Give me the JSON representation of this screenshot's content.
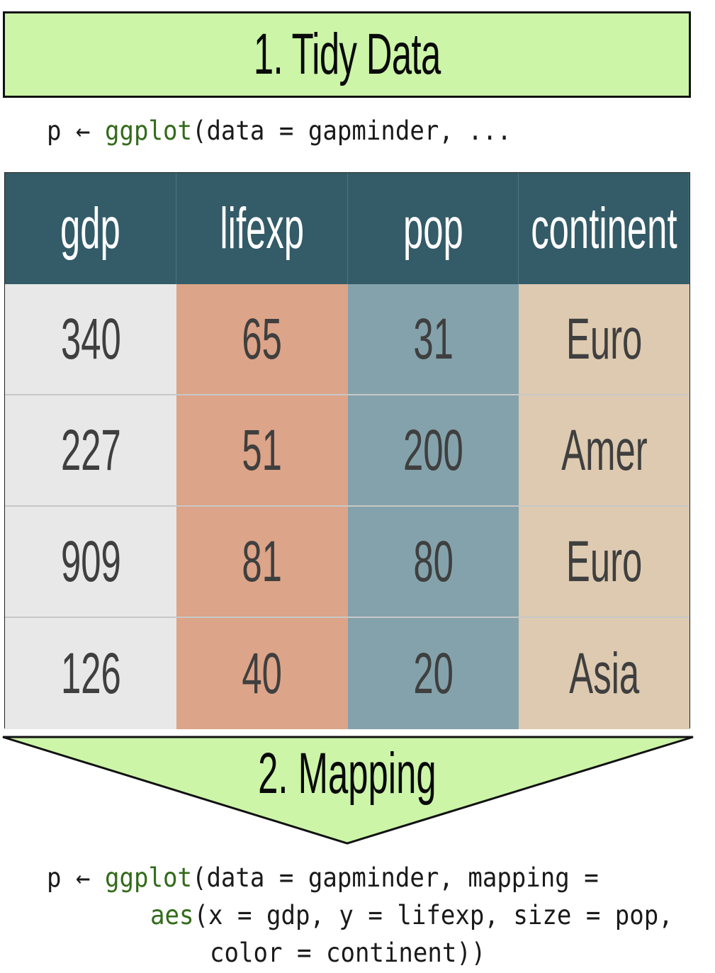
{
  "step1": {
    "title": "1. Tidy Data",
    "code": {
      "var": "p ← ",
      "fn": "ggplot",
      "rest": "(data = gapminder, ..."
    }
  },
  "table": {
    "headers": [
      "gdp",
      "lifexp",
      "pop",
      "continent"
    ],
    "rows": [
      [
        "340",
        "65",
        "31",
        "Euro"
      ],
      [
        "227",
        "51",
        "200",
        "Amer"
      ],
      [
        "909",
        "81",
        "80",
        "Euro"
      ],
      [
        "126",
        "40",
        "20",
        "Asia"
      ]
    ]
  },
  "step2": {
    "title": "2. Mapping",
    "code": {
      "line1_var": "p ← ",
      "line1_fn": "ggplot",
      "line1_rest": "(data = gapminder, mapping =",
      "line2_fn": "aes",
      "line2_rest": "(x = gdp, y = lifexp, size = pop,",
      "line3": "color = continent))"
    }
  },
  "colors": {
    "banner": "#ccf5a8",
    "header": "#335b68",
    "gdp_col": "#e8e8e8",
    "lifexp_col": "#dca488",
    "pop_col": "#84a2ab",
    "continent_col": "#ddcab0",
    "code_fn": "#336b1a"
  }
}
